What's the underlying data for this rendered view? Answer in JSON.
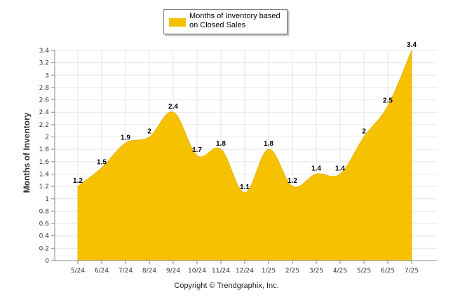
{
  "legend": {
    "label": "Months of Inventory based on Closed Sales"
  },
  "footer": {
    "text": "Copyright © Trendgraphix, Inc."
  },
  "colors": {
    "series": "#f5c100",
    "grid": "#e6e6e6",
    "axis": "#888888"
  },
  "chart_data": {
    "type": "area",
    "categories": [
      "5/24",
      "6/24",
      "7/24",
      "8/24",
      "9/24",
      "10/24",
      "11/24",
      "12/24",
      "1/25",
      "2/25",
      "3/25",
      "4/25",
      "5/25",
      "6/25",
      "7/25"
    ],
    "series": [
      {
        "name": "Months of Inventory based on Closed Sales",
        "values": [
          1.2,
          1.5,
          1.9,
          2,
          2.4,
          1.7,
          1.8,
          1.1,
          1.8,
          1.2,
          1.4,
          1.4,
          2,
          2.5,
          3.4
        ]
      }
    ],
    "data_labels": [
      "1.2",
      "1.5",
      "1.9",
      "2",
      "2.4",
      "1.7",
      "1.8",
      "1.1",
      "1.8",
      "1.2",
      "1.4",
      "1.4",
      "2",
      "2.5",
      "3.4"
    ],
    "ylabel": "Months of Inventory",
    "ylim": [
      0,
      3.4
    ],
    "yticks": [
      "0",
      "0.2",
      "0.4",
      "0.6",
      "0.8",
      "1",
      "1.2",
      "1.4",
      "1.6",
      "1.8",
      "2",
      "2.2",
      "2.4",
      "2.6",
      "2.8",
      "3",
      "3.2",
      "3.4"
    ],
    "grid": true,
    "legend_position": "top-center"
  }
}
